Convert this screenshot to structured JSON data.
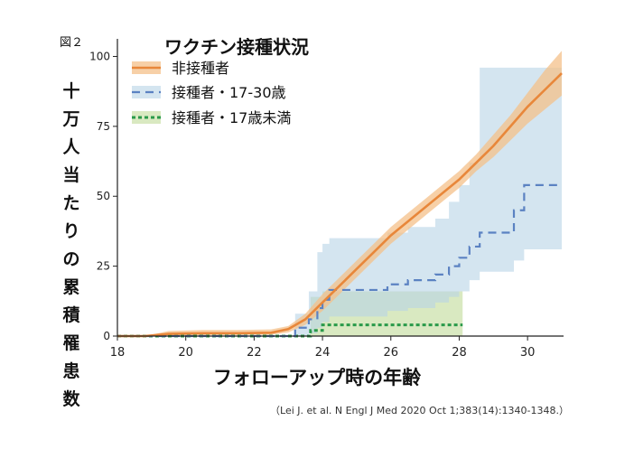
{
  "figure_label": "図２",
  "ylabel_chars": [
    "十",
    "万",
    "人",
    "当",
    "た",
    "り",
    "の",
    "累",
    "積",
    "罹",
    "患",
    "数"
  ],
  "citation_prefix": "（Lei J. et al. N Engl J Med",
  "citation_suffix": "2020 Oct 1;383(14):1340-1348.）",
  "colors": {
    "unvaccinated": "#e8873a",
    "unvaccinated_band": "#f4c089",
    "vac_17_30": "#5b82c2",
    "vac_17_30_band": "#b8d4e6",
    "vac_17": "#2a9a4a",
    "vac_17_band": "#cfe4b2"
  },
  "chart_data": {
    "type": "line",
    "title": "ワクチン接種状況",
    "xlabel": "フォローアップ時の年齢",
    "ylabel": "十万人当たりの累積罹患数",
    "xlim": [
      18,
      31
    ],
    "ylim": [
      0,
      105
    ],
    "xticks": [
      18,
      20,
      22,
      24,
      26,
      28,
      30
    ],
    "yticks": [
      0,
      25,
      50,
      75,
      100
    ],
    "grid": false,
    "legend_position": "top-left",
    "series": [
      {
        "name": "非接種者",
        "style": "solid",
        "x": [
          18,
          18.8,
          19.5,
          20.5,
          21.5,
          22.5,
          23.0,
          23.5,
          24.0,
          24.5,
          25.0,
          25.5,
          26.0,
          26.5,
          27.0,
          27.5,
          28.0,
          28.5,
          29.0,
          29.5,
          30.0,
          30.5,
          31.0
        ],
        "values": [
          0,
          0,
          0.8,
          1.0,
          1.0,
          1.2,
          2.5,
          6,
          12,
          18,
          24,
          30,
          36,
          41,
          46,
          51,
          56,
          62,
          68,
          75,
          82,
          88,
          94
        ],
        "band_lower": [
          0,
          0,
          0.3,
          0.4,
          0.4,
          0.5,
          1.3,
          4,
          9,
          15,
          21,
          27,
          33,
          38,
          43,
          48,
          53,
          59,
          64,
          70,
          76,
          81,
          86
        ],
        "band_upper": [
          0,
          0,
          1.8,
          2.2,
          2.2,
          2.4,
          3.6,
          8,
          15,
          21,
          27,
          33,
          39,
          44,
          49,
          54,
          59,
          65,
          72,
          79,
          87,
          95,
          102
        ]
      },
      {
        "name": "接種者・17-30歳",
        "style": "dashed",
        "x": [
          18,
          22.7,
          23.2,
          23.6,
          23.85,
          24.0,
          24.2,
          25.2,
          25.9,
          26.5,
          27.3,
          27.7,
          28.0,
          28.3,
          28.6,
          29.3,
          29.6,
          29.9,
          31.0
        ],
        "values": [
          0,
          0,
          3,
          6,
          10,
          13,
          16.5,
          16.5,
          18.5,
          20,
          22,
          25,
          28,
          32,
          37,
          37,
          45,
          54,
          54
        ],
        "band_lower": [
          0,
          0,
          0,
          1,
          3,
          5,
          7,
          7,
          9,
          10,
          12,
          14,
          16,
          20,
          23,
          23,
          27,
          31,
          31
        ],
        "band_upper": [
          0,
          0,
          8,
          16,
          30,
          33,
          35,
          35,
          37,
          39,
          42,
          48,
          54,
          62,
          96,
          96,
          96,
          96,
          96
        ]
      },
      {
        "name": "接種者・17歳未満",
        "style": "dotted",
        "x": [
          18,
          23.45,
          23.65,
          24.0,
          28.1
        ],
        "values": [
          0,
          0,
          2,
          4,
          4
        ],
        "band_lower": [
          0,
          0,
          0,
          0,
          0
        ],
        "band_upper": [
          0,
          0,
          14,
          16,
          16
        ]
      }
    ]
  }
}
